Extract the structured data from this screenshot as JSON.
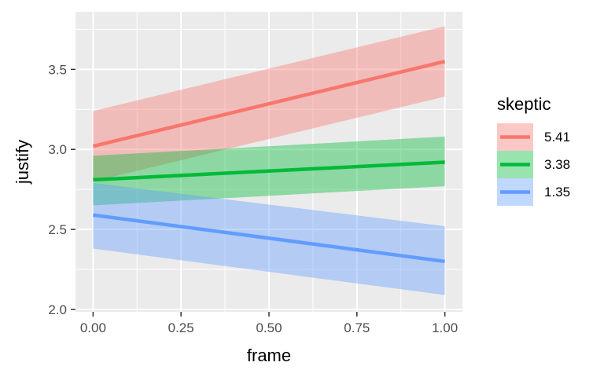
{
  "chart_data": {
    "type": "line",
    "xlabel": "frame",
    "ylabel": "justify",
    "xlim": [
      -0.05,
      1.05
    ],
    "ylim": [
      1.985,
      3.86
    ],
    "x_ticks": [
      0,
      0.25,
      0.5,
      0.75,
      1
    ],
    "x_tick_labels": [
      "0.00",
      "0.25",
      "0.50",
      "0.75",
      "1.00"
    ],
    "y_ticks": [
      2.0,
      2.5,
      3.0,
      3.5
    ],
    "y_tick_labels": [
      "2.0",
      "2.5",
      "3.0",
      "3.5"
    ],
    "grid": true,
    "legend": {
      "title": "skeptic",
      "position": "right"
    },
    "series": [
      {
        "name": "5.41",
        "color": "#F8766D",
        "x": [
          0,
          1
        ],
        "y": [
          3.02,
          3.55
        ],
        "lower": [
          2.8,
          3.33
        ],
        "upper": [
          3.24,
          3.77
        ]
      },
      {
        "name": "3.38",
        "color": "#00BA38",
        "x": [
          0,
          1
        ],
        "y": [
          2.81,
          2.92
        ],
        "lower": [
          2.65,
          2.77
        ],
        "upper": [
          2.96,
          3.08
        ]
      },
      {
        "name": "1.35",
        "color": "#619CFF",
        "x": [
          0,
          1
        ],
        "y": [
          2.59,
          2.3
        ],
        "lower": [
          2.38,
          2.09
        ],
        "upper": [
          2.79,
          2.52
        ]
      }
    ]
  }
}
